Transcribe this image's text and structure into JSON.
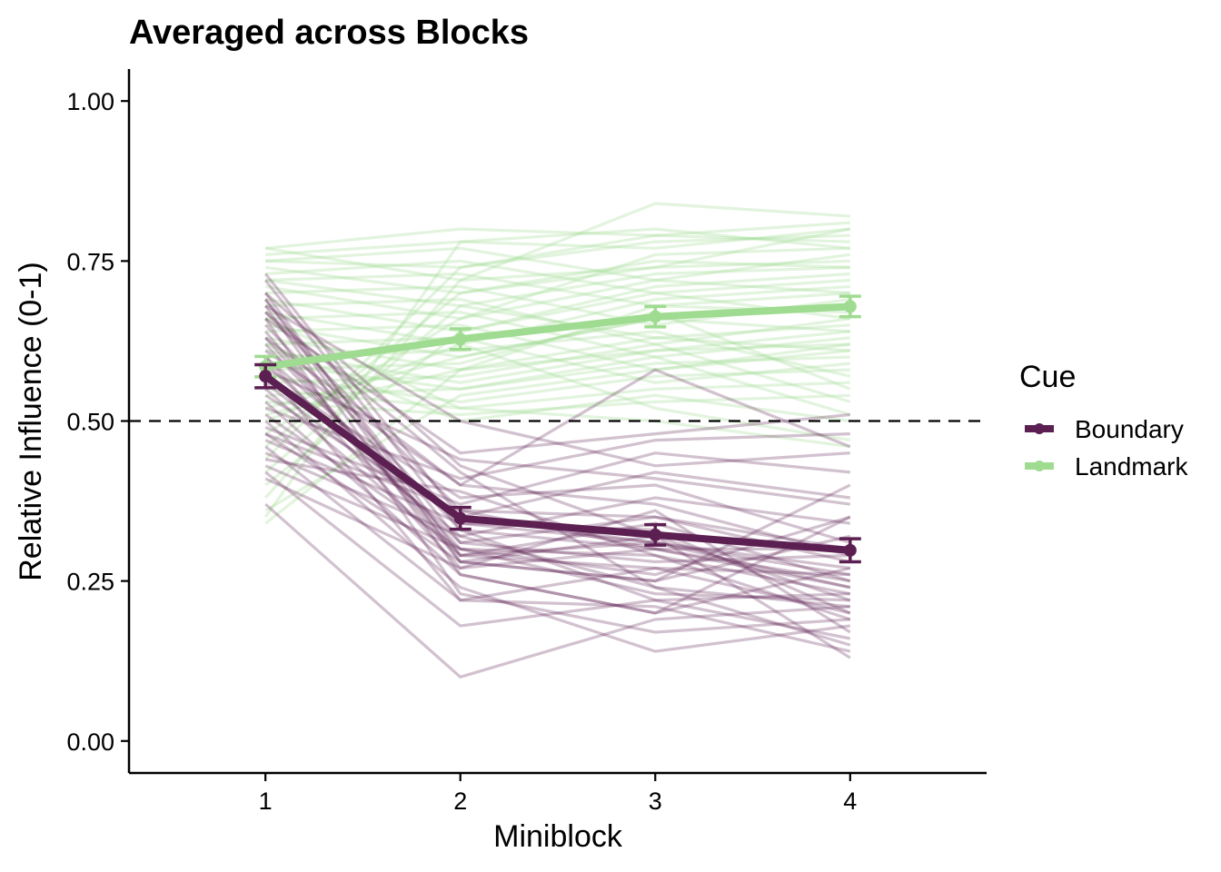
{
  "chart_data": {
    "type": "line",
    "title": "Averaged across Blocks",
    "xlabel": "Miniblock",
    "ylabel": "Relative Influence (0-1)",
    "x": [
      1,
      2,
      3,
      4
    ],
    "xlim": [
      0.3,
      4.7
    ],
    "ylim": [
      -0.05,
      1.05
    ],
    "yticks": [
      0.0,
      0.25,
      0.5,
      0.75,
      1.0
    ],
    "ytick_labels": [
      "0.00",
      "0.25",
      "0.50",
      "0.75",
      "1.00"
    ],
    "xtick_labels": [
      "1",
      "2",
      "3",
      "4"
    ],
    "grid": false,
    "reference_line": 0.5,
    "legend": {
      "title": "Cue",
      "position": "right"
    },
    "series": [
      {
        "name": "Boundary",
        "color": "#5c1f52",
        "values": [
          0.57,
          0.348,
          0.322,
          0.298
        ],
        "error": [
          0.018,
          0.017,
          0.016,
          0.018
        ]
      },
      {
        "name": "Landmark",
        "color": "#9fdb91",
        "values": [
          0.585,
          0.628,
          0.663,
          0.679
        ],
        "error": [
          0.016,
          0.016,
          0.016,
          0.016
        ]
      }
    ],
    "individual_lines": {
      "Boundary": [
        [
          0.73,
          0.35,
          0.31,
          0.26
        ],
        [
          0.72,
          0.33,
          0.3,
          0.3
        ],
        [
          0.7,
          0.43,
          0.32,
          0.22
        ],
        [
          0.7,
          0.29,
          0.27,
          0.2
        ],
        [
          0.69,
          0.28,
          0.25,
          0.4
        ],
        [
          0.69,
          0.31,
          0.35,
          0.28
        ],
        [
          0.68,
          0.5,
          0.43,
          0.45
        ],
        [
          0.68,
          0.26,
          0.2,
          0.35
        ],
        [
          0.67,
          0.42,
          0.24,
          0.21
        ],
        [
          0.67,
          0.36,
          0.3,
          0.24
        ],
        [
          0.66,
          0.23,
          0.17,
          0.19
        ],
        [
          0.66,
          0.45,
          0.48,
          0.51
        ],
        [
          0.65,
          0.33,
          0.22,
          0.23
        ],
        [
          0.64,
          0.28,
          0.32,
          0.13
        ],
        [
          0.63,
          0.4,
          0.37,
          0.29
        ],
        [
          0.62,
          0.3,
          0.26,
          0.35
        ],
        [
          0.61,
          0.4,
          0.58,
          0.46
        ],
        [
          0.6,
          0.34,
          0.31,
          0.27
        ],
        [
          0.6,
          0.27,
          0.36,
          0.17
        ],
        [
          0.59,
          0.31,
          0.28,
          0.29
        ],
        [
          0.58,
          0.22,
          0.21,
          0.14
        ],
        [
          0.57,
          0.38,
          0.4,
          0.31
        ],
        [
          0.56,
          0.32,
          0.24,
          0.15
        ],
        [
          0.55,
          0.29,
          0.34,
          0.25
        ],
        [
          0.54,
          0.35,
          0.42,
          0.38
        ],
        [
          0.53,
          0.26,
          0.2,
          0.27
        ],
        [
          0.52,
          0.41,
          0.47,
          0.48
        ],
        [
          0.51,
          0.3,
          0.29,
          0.23
        ],
        [
          0.5,
          0.24,
          0.14,
          0.18
        ],
        [
          0.49,
          0.37,
          0.45,
          0.42
        ],
        [
          0.48,
          0.28,
          0.25,
          0.32
        ],
        [
          0.47,
          0.34,
          0.33,
          0.2
        ],
        [
          0.46,
          0.22,
          0.27,
          0.26
        ],
        [
          0.45,
          0.32,
          0.38,
          0.34
        ],
        [
          0.44,
          0.39,
          0.29,
          0.19
        ],
        [
          0.43,
          0.3,
          0.23,
          0.22
        ],
        [
          0.42,
          0.18,
          0.22,
          0.16
        ],
        [
          0.41,
          0.27,
          0.3,
          0.25
        ],
        [
          0.37,
          0.1,
          0.19,
          0.21
        ],
        [
          0.58,
          0.44,
          0.41,
          0.37
        ],
        [
          0.63,
          0.29,
          0.31,
          0.24
        ],
        [
          0.48,
          0.36,
          0.35,
          0.3
        ]
      ],
      "Landmark": [
        [
          0.77,
          0.72,
          0.84,
          0.82
        ],
        [
          0.77,
          0.8,
          0.79,
          0.81
        ],
        [
          0.76,
          0.78,
          0.77,
          0.8
        ],
        [
          0.75,
          0.74,
          0.79,
          0.78
        ],
        [
          0.75,
          0.77,
          0.72,
          0.76
        ],
        [
          0.74,
          0.7,
          0.74,
          0.8
        ],
        [
          0.73,
          0.75,
          0.7,
          0.72
        ],
        [
          0.72,
          0.68,
          0.73,
          0.74
        ],
        [
          0.72,
          0.73,
          0.68,
          0.7
        ],
        [
          0.71,
          0.66,
          0.76,
          0.77
        ],
        [
          0.7,
          0.71,
          0.65,
          0.69
        ],
        [
          0.69,
          0.64,
          0.71,
          0.73
        ],
        [
          0.68,
          0.69,
          0.62,
          0.66
        ],
        [
          0.67,
          0.62,
          0.69,
          0.71
        ],
        [
          0.66,
          0.67,
          0.6,
          0.63
        ],
        [
          0.65,
          0.6,
          0.66,
          0.68
        ],
        [
          0.64,
          0.65,
          0.58,
          0.61
        ],
        [
          0.63,
          0.58,
          0.63,
          0.65
        ],
        [
          0.62,
          0.63,
          0.56,
          0.59
        ],
        [
          0.61,
          0.56,
          0.61,
          0.62
        ],
        [
          0.6,
          0.61,
          0.64,
          0.57
        ],
        [
          0.59,
          0.55,
          0.59,
          0.6
        ],
        [
          0.58,
          0.59,
          0.67,
          0.55
        ],
        [
          0.57,
          0.53,
          0.57,
          0.58
        ],
        [
          0.56,
          0.57,
          0.62,
          0.53
        ],
        [
          0.55,
          0.52,
          0.55,
          0.56
        ],
        [
          0.54,
          0.55,
          0.6,
          0.51
        ],
        [
          0.53,
          0.51,
          0.53,
          0.54
        ],
        [
          0.52,
          0.6,
          0.66,
          0.64
        ],
        [
          0.51,
          0.58,
          0.68,
          0.67
        ],
        [
          0.5,
          0.62,
          0.52,
          0.47
        ],
        [
          0.48,
          0.66,
          0.72,
          0.7
        ],
        [
          0.46,
          0.7,
          0.75,
          0.74
        ],
        [
          0.44,
          0.74,
          0.78,
          0.79
        ],
        [
          0.42,
          0.68,
          0.63,
          0.61
        ],
        [
          0.4,
          0.64,
          0.7,
          0.66
        ],
        [
          0.38,
          0.72,
          0.74,
          0.75
        ],
        [
          0.36,
          0.54,
          0.58,
          0.62
        ],
        [
          0.35,
          0.78,
          0.8,
          0.77
        ],
        [
          0.34,
          0.58,
          0.61,
          0.64
        ],
        [
          0.62,
          0.5,
          0.54,
          0.5
        ],
        [
          0.66,
          0.52,
          0.5,
          0.46
        ]
      ]
    }
  }
}
